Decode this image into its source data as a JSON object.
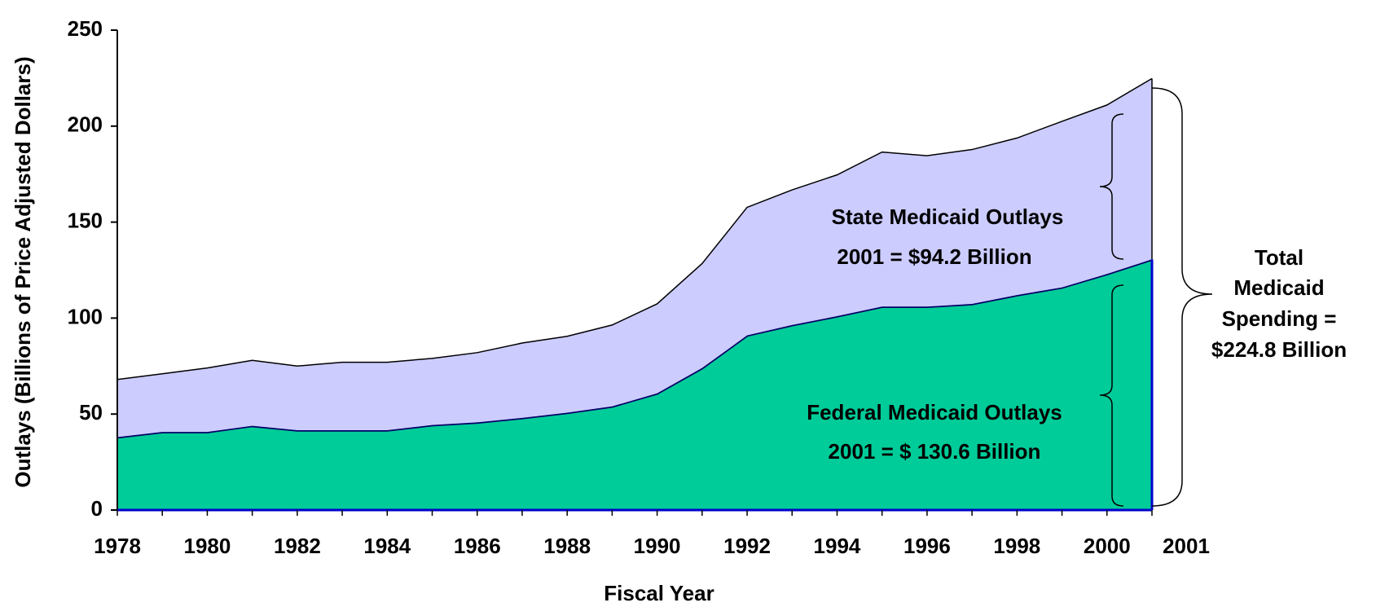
{
  "chart_data": {
    "type": "area",
    "stacked": true,
    "ylabel": "Outlays (Billions of Price Adjusted Dollars)",
    "xlabel": "Fiscal Year",
    "categories": [
      "1978",
      null,
      "1980",
      null,
      "1982",
      null,
      "1984",
      null,
      "1986",
      null,
      "1988",
      null,
      "1990",
      null,
      "1992",
      null,
      "1994",
      null,
      "1996",
      null,
      "1998",
      null,
      "2000",
      "2001"
    ],
    "series": [
      {
        "name": "Federal Medicaid Outlays",
        "color": "#00cc99",
        "line_color": "#000066",
        "values": [
          38,
          40.7,
          40.7,
          43.9,
          41.6,
          41.6,
          41.6,
          44.3,
          45.7,
          48,
          50.7,
          54,
          60.8,
          74,
          91,
          96.4,
          101,
          106,
          106,
          107.4,
          112,
          116,
          123,
          130.6
        ]
      },
      {
        "name": "State Medicaid Outlays",
        "color": "#ccccff",
        "line_color": "#000000",
        "values": [
          30,
          30.3,
          33.3,
          34.1,
          33.4,
          35.4,
          35.4,
          34.7,
          36.3,
          39,
          39.8,
          42.4,
          46.6,
          54.4,
          66.7,
          70.4,
          73.6,
          80.5,
          78.6,
          80.4,
          81.8,
          86.5,
          88,
          94.2
        ]
      }
    ],
    "ylim": [
      0,
      250
    ],
    "yticks": [
      0,
      50,
      100,
      150,
      200,
      250
    ],
    "annotations": {
      "state": "2001 = $94.2 Billion",
      "federal": "2001 = $ 130.6 Billion",
      "total": [
        "Total",
        "Medicaid",
        "Spending =",
        "$224.8 Billion"
      ]
    }
  }
}
